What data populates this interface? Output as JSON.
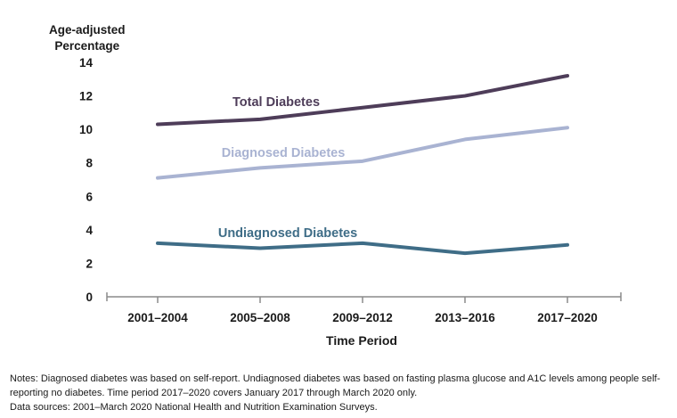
{
  "chart_data": {
    "type": "line",
    "ylabel_line1": "Age-adjusted",
    "ylabel_line2": "Percentage",
    "xlabel": "Time Period",
    "categories": [
      "2001–2004",
      "2005–2008",
      "2009–2012",
      "2013–2016",
      "2017–2020"
    ],
    "ylim": [
      0,
      14
    ],
    "yticks": [
      0,
      2,
      4,
      6,
      8,
      10,
      12,
      14
    ],
    "grid": false,
    "legend": "inline labels",
    "series": [
      {
        "name": "Total Diabetes",
        "values": [
          10.3,
          10.6,
          11.3,
          12.0,
          13.2
        ],
        "color": "#4e3d59"
      },
      {
        "name": "Diagnosed Diabetes",
        "values": [
          7.1,
          7.7,
          8.1,
          9.4,
          10.1
        ],
        "color": "#a9b3d2"
      },
      {
        "name": "Undiagnosed Diabetes",
        "values": [
          3.2,
          2.9,
          3.2,
          2.6,
          3.1
        ],
        "color": "#3f6d87"
      }
    ]
  },
  "notes": {
    "line1": "Notes: Diagnosed diabetes was based on self-report. Undiagnosed diabetes was based on fasting plasma glucose and A1C levels among people self-reporting no diabetes. Time period 2017–2020 covers January 2017 through March 2020 only.",
    "line2": "Data sources: 2001–March 2020 National Health and Nutrition Examination Surveys."
  }
}
